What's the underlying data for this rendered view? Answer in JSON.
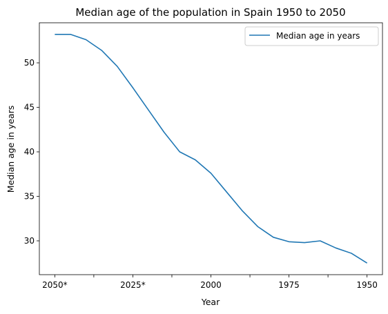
{
  "chart_data": {
    "type": "line",
    "title": "Median age of the population in Spain 1950 to 2050",
    "xlabel": "Year",
    "ylabel": "Median age in years",
    "x": [
      "2050*",
      "2045*",
      "2040*",
      "2035*",
      "2030*",
      "2025*",
      "2020*",
      "2015",
      "2010",
      "2005",
      "2000",
      "1995",
      "1990",
      "1985",
      "1980",
      "1975",
      "1970",
      "1965",
      "1960",
      "1955",
      "1950"
    ],
    "x_tick_labels": [
      "2050*",
      "",
      "2025*",
      "",
      "2000",
      "",
      "1975",
      "",
      "1950"
    ],
    "series": [
      {
        "name": "Median age in years",
        "color": "#1f77b4",
        "values": [
          53.2,
          53.2,
          52.6,
          51.4,
          49.6,
          47.2,
          44.7,
          42.2,
          40.0,
          39.1,
          37.6,
          35.5,
          33.4,
          31.6,
          30.4,
          29.9,
          29.8,
          30.0,
          29.2,
          28.6,
          27.5
        ]
      }
    ],
    "yticks": [
      30,
      35,
      40,
      45,
      50
    ],
    "ylim": [
      26.2,
      54.5
    ],
    "grid": false,
    "legend": "top-right"
  }
}
